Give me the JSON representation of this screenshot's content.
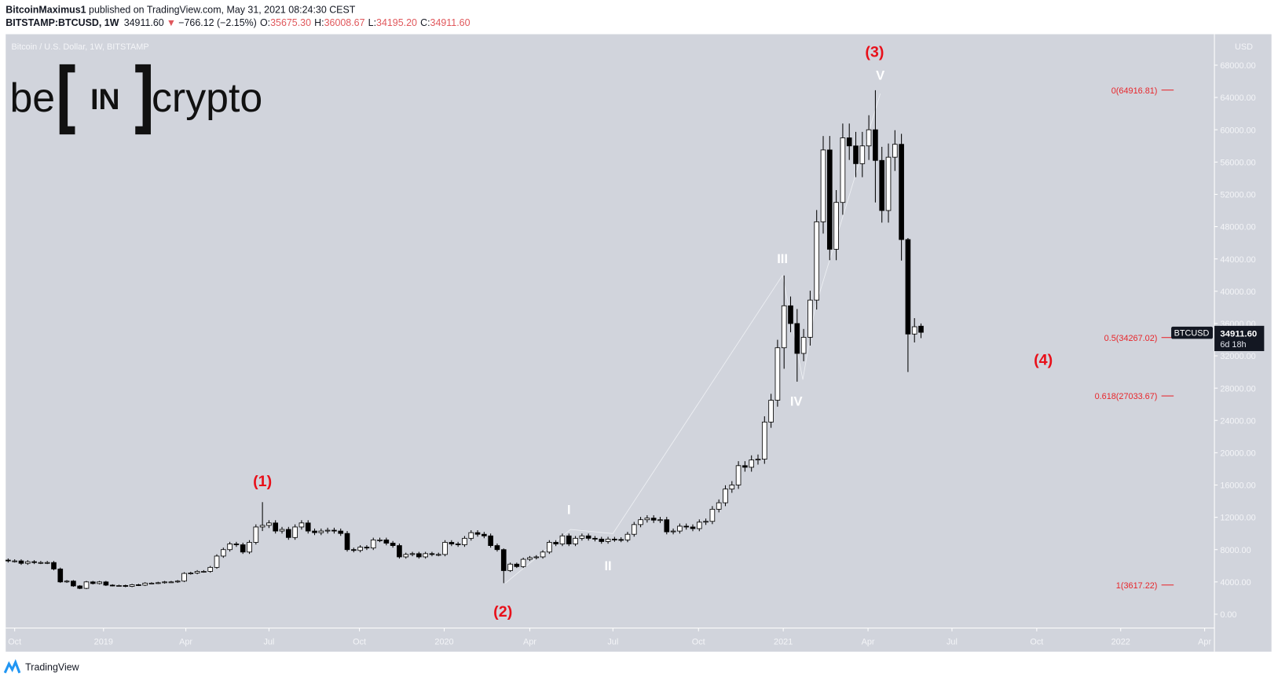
{
  "header": {
    "author": "BitcoinMaximus1",
    "published": " published on TradingView.com, May 31, 2021 08:24:30 CEST",
    "symbol": "BITSTAMP:BTCUSD, 1W",
    "last": "34911.60",
    "change": "−766.12 (−2.15%)",
    "o_label": "O:",
    "o": "35675.30",
    "h_label": "H:",
    "h": "36008.67",
    "l_label": "L:",
    "l": "34195.20",
    "c_label": "C:",
    "c": "34911.60"
  },
  "chart_title": "Bitcoin / U.S. Dollar, 1W, BITSTAMP",
  "logo": {
    "left": "be",
    "mid": "IN",
    "right": "crypto"
  },
  "footer": {
    "brand": "TradingView"
  },
  "colors": {
    "background": "#d1d4dc",
    "fib": "#e8262b",
    "wave_major": "#e8101a",
    "wave_minor": "#ffffff",
    "bull": "#ffffff",
    "bear": "#000000"
  },
  "price_tag": {
    "symbol": "BTCUSD",
    "price": "34911.60",
    "countdown": "6d 18h"
  },
  "chart_data": {
    "type": "candlestick",
    "currency_label": "USD",
    "ylim": [
      0,
      68000
    ],
    "y_ticks": [
      "0.00",
      "4000.00",
      "8000.00",
      "12000.00",
      "16000.00",
      "20000.00",
      "24000.00",
      "28000.00",
      "32000.00",
      "36000.00",
      "40000.00",
      "44000.00",
      "48000.00",
      "52000.00",
      "56000.00",
      "60000.00",
      "64000.00",
      "68000.00"
    ],
    "x_ticks": [
      "Oct",
      "2019",
      "Apr",
      "Jul",
      "Oct",
      "2020",
      "Apr",
      "Jul",
      "Oct",
      "2021",
      "Apr",
      "Jul",
      "Oct",
      "2022",
      "Apr"
    ],
    "first_week": "2018-09-24",
    "closes": [
      6600,
      6600,
      6300,
      6500,
      6400,
      6400,
      6400,
      5600,
      4000,
      4100,
      3500,
      3200,
      4000,
      3800,
      4000,
      3600,
      3550,
      3550,
      3450,
      3650,
      3600,
      3850,
      3850,
      3900,
      4000,
      4000,
      4100,
      5050,
      5100,
      5300,
      5300,
      5800,
      7200,
      8000,
      8700,
      8600,
      7700,
      8900,
      10800,
      11000,
      11300,
      10300,
      10500,
      9500,
      10800,
      11300,
      10300,
      10100,
      10300,
      10400,
      10300,
      10000,
      8000,
      7900,
      8300,
      8200,
      9200,
      9200,
      8800,
      8500,
      7100,
      7400,
      7500,
      7100,
      7500,
      7400,
      7400,
      8900,
      8700,
      8600,
      9400,
      10100,
      9900,
      9700,
      8500,
      8000,
      5400,
      6200,
      5900,
      6800,
      7000,
      7100,
      7700,
      8900,
      8700,
      9700,
      8700,
      9400,
      9700,
      9400,
      9300,
      9000,
      9300,
      9250,
      9200,
      9900,
      11100,
      11700,
      11900,
      11650,
      11700,
      10200,
      10300,
      10900,
      10800,
      10600,
      11400,
      11500,
      13000,
      13800,
      15500,
      16000,
      18400,
      18200,
      19100,
      19200,
      23800,
      26500,
      33000,
      38200,
      36000,
      32300,
      34300,
      38900,
      48600,
      57500,
      45200,
      51000,
      59000,
      58000,
      55800,
      58000,
      60000,
      56200,
      50000,
      56600,
      58200,
      46400,
      34700,
      35600,
      34911.6
    ],
    "last_candle": {
      "open": 35675.3,
      "high": 36008.67,
      "low": 34195.2,
      "close": 34911.6
    },
    "wick_extremes": {
      "39": [
        13880,
        10300
      ],
      "76": [
        8150,
        3850
      ],
      "119": [
        41950,
        30400
      ],
      "121": [
        37800,
        28800
      ],
      "133": [
        64900,
        51000
      ],
      "137": [
        59500,
        43800
      ],
      "138": [
        46600,
        30000
      ]
    },
    "fib_levels": [
      {
        "label": "0(64916.81)",
        "value": 64916.81
      },
      {
        "label": "0.5(34267.02)",
        "value": 34267.02
      },
      {
        "label": "0.618(27033.67)",
        "value": 27033.67
      },
      {
        "label": "1(3617.22)",
        "value": 3617.22
      }
    ],
    "wave_labels_major": [
      "(1)",
      "(2)",
      "(3)",
      "(4)"
    ],
    "wave_labels_minor": [
      "I",
      "II",
      "III",
      "IV",
      "V"
    ]
  }
}
